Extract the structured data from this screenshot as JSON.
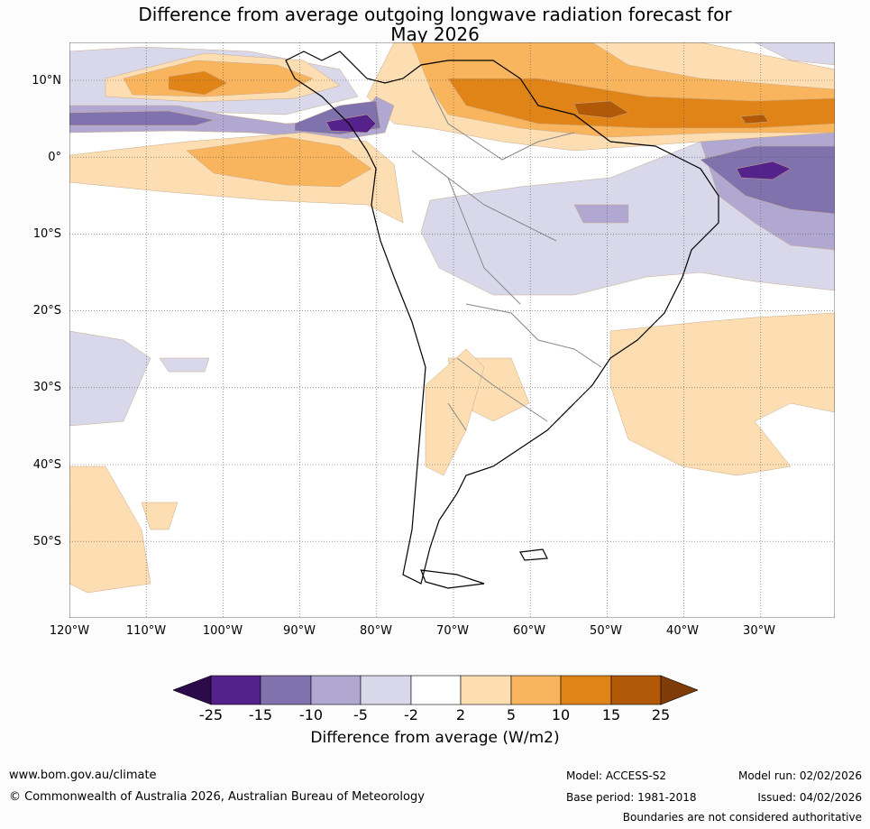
{
  "title_line1": "Difference from average outgoing longwave radiation forecast for",
  "title_line2": "May 2026",
  "lat_labels": [
    "10°N",
    "0°",
    "10°S",
    "20°S",
    "30°S",
    "40°S",
    "50°S"
  ],
  "lon_labels": [
    "120°W",
    "110°W",
    "100°W",
    "90°W",
    "80°W",
    "70°W",
    "60°W",
    "50°W",
    "40°W",
    "30°W"
  ],
  "colorbar": {
    "ticks": [
      "-25",
      "-15",
      "-10",
      "-5",
      "-2",
      "2",
      "5",
      "10",
      "15",
      "25"
    ],
    "colors": [
      "#2d0a4a",
      "#55218a",
      "#8072ad",
      "#b0a8d1",
      "#d8d8ea",
      "#ffffff",
      "#fddeb3",
      "#f9b45e",
      "#e08418",
      "#b25908",
      "#7f3b08"
    ],
    "title": "Difference from average (W/m2)"
  },
  "footer": {
    "website": "www.bom.gov.au/climate",
    "copyright": "© Commonwealth of Australia 2026, Australian Bureau of Meteorology",
    "model": "Model: ACCESS-S2",
    "base_period": "Base period: 1981-2018",
    "model_run": "Model run: 02/02/2026",
    "issued": "Issued: 04/02/2026",
    "disclaimer": "Boundaries are not considered authoritative"
  }
}
